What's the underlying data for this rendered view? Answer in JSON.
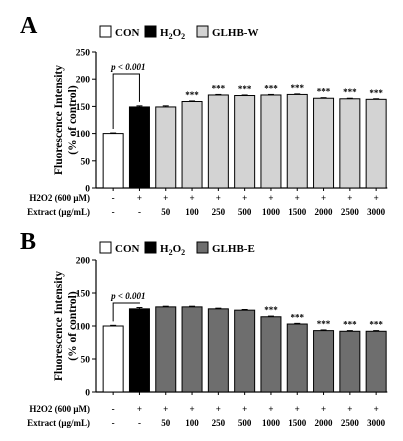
{
  "chart_data": [
    {
      "type": "bar",
      "panel_label": "A",
      "legend": [
        {
          "name": "CON",
          "color": "#ffffff"
        },
        {
          "name": "H",
          "sub": "2",
          "name2": "O",
          "sub2": "2",
          "color": "#000000"
        },
        {
          "name": "GLHB-W",
          "color": "#d3d3d3"
        }
      ],
      "ylabel_line1": "Fluorescence Intensity",
      "ylabel_line2": "(% of control)",
      "ylim": [
        0,
        250
      ],
      "yticks": [
        "0",
        "50",
        "100",
        "150",
        "200",
        "250"
      ],
      "row1_label": "H2O2 (600 μM)",
      "row2_label": "Extract (μg/mL)",
      "row1": [
        "-",
        "+",
        "+",
        "+",
        "+",
        "+",
        "+",
        "+",
        "+",
        "+",
        "+"
      ],
      "row2": [
        "-",
        "-",
        "50",
        "100",
        "250",
        "500",
        "1000",
        "1500",
        "2000",
        "2500",
        "3000"
      ],
      "values": [
        100,
        149,
        149,
        159,
        171,
        170,
        171,
        172,
        165,
        164,
        163
      ],
      "errors": [
        1,
        2,
        2,
        1,
        1,
        1,
        1,
        1,
        1,
        1,
        1
      ],
      "colors": [
        "#ffffff",
        "#000000",
        "#d3d3d3",
        "#d3d3d3",
        "#d3d3d3",
        "#d3d3d3",
        "#d3d3d3",
        "#d3d3d3",
        "#d3d3d3",
        "#d3d3d3",
        "#d3d3d3"
      ],
      "stars": [
        "",
        "",
        "",
        "***",
        "***",
        "***",
        "***",
        "***",
        "***",
        "***",
        "***"
      ],
      "pval_text": "p < 0.001"
    },
    {
      "type": "bar",
      "panel_label": "B",
      "legend": [
        {
          "name": "CON",
          "color": "#ffffff"
        },
        {
          "name": "H",
          "sub": "2",
          "name2": "O",
          "sub2": "2",
          "color": "#000000"
        },
        {
          "name": "GLHB-E",
          "color": "#6e6e6e"
        }
      ],
      "ylabel_line1": "Fluorescence Intensity",
      "ylabel_line2": "(% of control)",
      "ylim": [
        0,
        200
      ],
      "yticks": [
        "0",
        "50",
        "100",
        "150",
        "200"
      ],
      "row1_label": "H2O2 (600 μM)",
      "row2_label": "Extract (μg/mL)",
      "row1": [
        "-",
        "+",
        "+",
        "+",
        "+",
        "+",
        "+",
        "+",
        "+",
        "+",
        "+"
      ],
      "row2": [
        "-",
        "-",
        "50",
        "100",
        "250",
        "500",
        "1000",
        "1500",
        "2000",
        "2500",
        "3000"
      ],
      "values": [
        100,
        126,
        129,
        129,
        126,
        124,
        114,
        103,
        93,
        92,
        92
      ],
      "errors": [
        1,
        2,
        1,
        1,
        1,
        1,
        1,
        1,
        1,
        1,
        1
      ],
      "colors": [
        "#ffffff",
        "#000000",
        "#6e6e6e",
        "#6e6e6e",
        "#6e6e6e",
        "#6e6e6e",
        "#6e6e6e",
        "#6e6e6e",
        "#6e6e6e",
        "#6e6e6e",
        "#6e6e6e"
      ],
      "stars": [
        "",
        "",
        "",
        "",
        "",
        "",
        "***",
        "***",
        "***",
        "***",
        "***"
      ],
      "pval_text": "p < 0.001"
    }
  ]
}
